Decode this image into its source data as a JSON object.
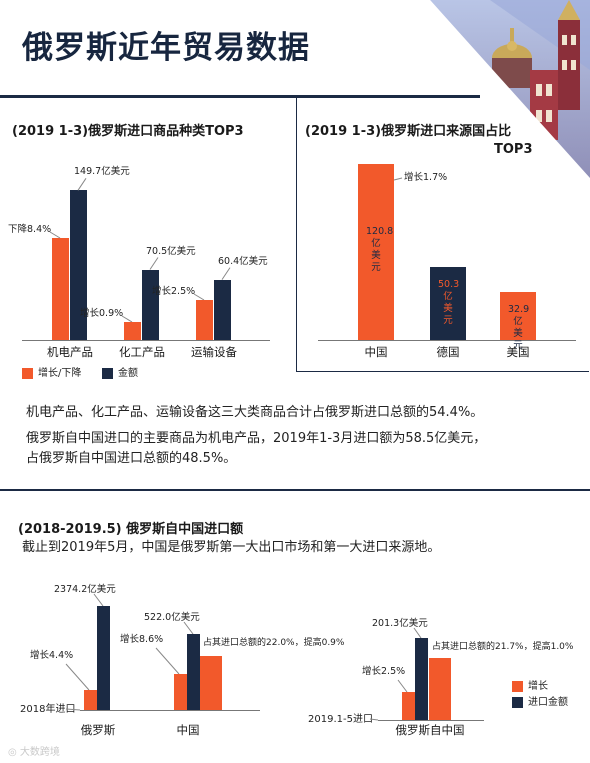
{
  "page": {
    "title": "俄罗斯近年贸易数据",
    "watermark": "大数跨境"
  },
  "colors": {
    "orange": "#f2592b",
    "navy": "#1b2a44"
  },
  "section1": {
    "title": "(2019 1-3)俄罗斯进口商品种类TOP3",
    "legend_growth": "增长/下降",
    "legend_amount": "金额"
  },
  "section2": {
    "title_line1": "(2019 1-3)俄罗斯进口来源国占比",
    "title_line2": "TOP3"
  },
  "text": {
    "p1": "机电产品、化工产品、运输设备这三大类商品合计占俄罗斯进口总额的54.4%。",
    "p2": "俄罗斯自中国进口的主要商品为机电产品，2019年1-3月进口额为58.5亿美元，",
    "p3": "占俄罗斯自中国进口总额的48.5%。"
  },
  "section3": {
    "title": "(2018-2019.5) 俄罗斯自中国进口额",
    "subtitle": "截止到2019年5月，中国是俄罗斯第一大出口市场和第一大进口来源地。",
    "legend_growth": "增长",
    "legend_amount": "进口金额"
  },
  "chart_data": [
    {
      "type": "bar",
      "title": "(2019 1-3)俄罗斯进口商品种类TOP3",
      "categories": [
        "机电产品",
        "化工产品",
        "运输设备"
      ],
      "series": [
        {
          "name": "增长/下降",
          "values": [
            -8.4,
            0.9,
            2.5
          ],
          "labels": [
            "下降8.4%",
            "增长0.9%",
            "增长2.5%"
          ]
        },
        {
          "name": "金额",
          "values": [
            149.7,
            70.5,
            60.4
          ],
          "labels": [
            "149.7亿美元",
            "70.5亿美元",
            "60.4亿美元"
          ]
        }
      ]
    },
    {
      "type": "bar",
      "title": "(2019 1-3)俄罗斯进口来源国占比TOP3",
      "categories": [
        "中国",
        "德国",
        "美国"
      ],
      "values": [
        120.8,
        50.3,
        32.9
      ],
      "value_labels": [
        "120.8亿美元",
        "50.3亿美元",
        "32.9亿美元"
      ],
      "bar_text": [
        "120.8\n亿\n美\n元",
        "50.3\n亿\n美\n元",
        "32.9\n亿\n美\n元"
      ],
      "annotation": "增长1.7%"
    },
    {
      "type": "bar",
      "title": "2018年进口",
      "row_label": "2018年进口",
      "categories": [
        "俄罗斯",
        "中国"
      ],
      "series": [
        {
          "name": "增长",
          "values": [
            4.4,
            8.6
          ],
          "labels": [
            "增长4.4%",
            "增长8.6%"
          ]
        },
        {
          "name": "进口金额",
          "values": [
            2374.2,
            522.0
          ],
          "labels": [
            "2374.2亿美元",
            "522.0亿美元"
          ]
        }
      ],
      "extra": {
        "share_value": 22.0,
        "share_label": "占其进口总额的22.0%，提高0.9%"
      }
    },
    {
      "type": "bar",
      "title": "2019.1-5进口",
      "row_label": "2019.1-5进口",
      "categories": [
        "俄罗斯自中国"
      ],
      "series": [
        {
          "name": "增长",
          "values": [
            2.5
          ],
          "labels": [
            "增长2.5%"
          ]
        },
        {
          "name": "进口金额",
          "values": [
            201.3
          ],
          "labels": [
            "201.3亿美元"
          ]
        }
      ],
      "extra": {
        "share_value": 21.7,
        "share_label": "占其进口总额的21.7%，提高1.0%"
      }
    }
  ]
}
